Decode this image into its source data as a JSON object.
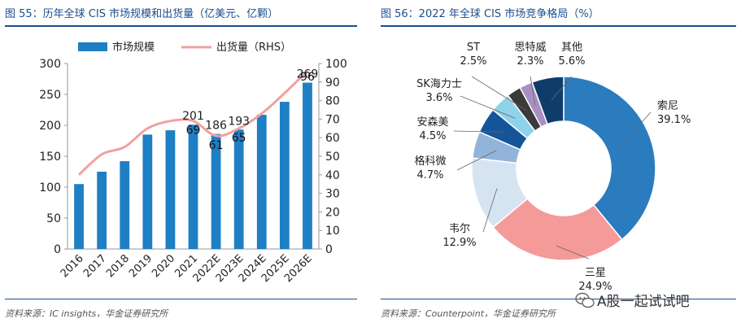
{
  "left": {
    "title": "图 55：历年全球 CIS 市场规模和出货量（亿美元、亿颗）",
    "source": "资料来源：IC insights，华金证券研究所"
  },
  "right": {
    "title": "图 56：2022 年全球 CIS 市场竞争格局（%）",
    "source": "资料来源：Counterpoint，华金证券研究所"
  },
  "watermark": "A股一起试试吧",
  "colors": {
    "bar": "#1f7fc4",
    "line": "#f2a0a0",
    "title": "#1a4e8c"
  },
  "chart_data": [
    {
      "type": "bar",
      "categories": [
        "2016",
        "2017",
        "2018",
        "2019",
        "2020",
        "2021",
        "2022E",
        "2023E",
        "2024E",
        "2025E",
        "2026E"
      ],
      "series": [
        {
          "name": "市场规模",
          "type": "bar",
          "axis": "left",
          "values": [
            105,
            125,
            142,
            185,
            192,
            201,
            186,
            193,
            217,
            238,
            269
          ]
        },
        {
          "name": "出货量（RHS）",
          "type": "line",
          "axis": "right",
          "values": [
            40,
            51,
            55,
            65,
            69,
            69,
            61,
            65,
            73,
            84,
            96
          ]
        }
      ],
      "bar_labels": [
        {
          "index": 5,
          "text": "201"
        },
        {
          "index": 6,
          "text": "186"
        },
        {
          "index": 7,
          "text": "193"
        },
        {
          "index": 10,
          "text": "269"
        }
      ],
      "line_labels": [
        {
          "index": 5,
          "text": "69"
        },
        {
          "index": 6,
          "text": "61"
        },
        {
          "index": 7,
          "text": "65"
        },
        {
          "index": 10,
          "text": "96"
        }
      ],
      "ylim": [
        0,
        300
      ],
      "yticks": [
        "0",
        "50",
        "100",
        "150",
        "200",
        "250",
        "300"
      ],
      "y2lim": [
        0,
        100
      ],
      "y2ticks": [
        "0",
        "10",
        "20",
        "30",
        "40",
        "50",
        "60",
        "70",
        "80",
        "90",
        "100"
      ],
      "legend_position": "top"
    },
    {
      "type": "pie",
      "donut": true,
      "slices": [
        {
          "label": "索尼",
          "value": 39.1,
          "text": "39.1%",
          "color": "#2b7bbf"
        },
        {
          "label": "三星",
          "value": 24.9,
          "text": "24.9%",
          "color": "#f49a98"
        },
        {
          "label": "韦尔",
          "value": 12.9,
          "text": "12.9%",
          "color": "#d6e4f2"
        },
        {
          "label": "格科微",
          "value": 4.7,
          "text": "4.7%",
          "color": "#93b4da"
        },
        {
          "label": "安森美",
          "value": 4.5,
          "text": "4.5%",
          "color": "#14559a"
        },
        {
          "label": "SK海力士",
          "value": 3.6,
          "text": "3.6%",
          "color": "#8fd3ea"
        },
        {
          "label": "ST",
          "value": 2.5,
          "text": "2.5%",
          "color": "#3a3a3a"
        },
        {
          "label": "思特威",
          "value": 2.3,
          "text": "2.3%",
          "color": "#a78fc4"
        },
        {
          "label": "其他",
          "value": 5.6,
          "text": "5.6%",
          "color": "#0e3d6b"
        }
      ]
    }
  ]
}
